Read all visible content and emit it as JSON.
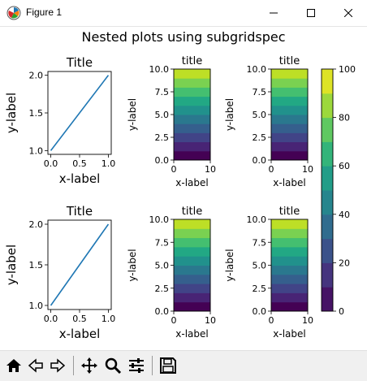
{
  "window": {
    "title": "Figure 1",
    "app_icon": "matplotlib-logo-icon",
    "buttons": [
      "minimize-icon",
      "maximize-icon",
      "close-icon"
    ]
  },
  "figure": {
    "suptitle": "Nested plots using subgridspec"
  },
  "colors": {
    "line": "#1f77b4",
    "viridis": [
      "#440154",
      "#482475",
      "#414487",
      "#355f8d",
      "#2a788e",
      "#21918c",
      "#22a884",
      "#44bf70",
      "#7ad151",
      "#bddf26",
      "#fde725"
    ]
  },
  "chart_data": [
    {
      "type": "line",
      "title": "Title",
      "xlabel": "x-label",
      "ylabel": "y-label",
      "x": [
        0,
        1
      ],
      "y": [
        1,
        2
      ],
      "xlim": [
        -0.05,
        1.05
      ],
      "ylim": [
        0.95,
        2.05
      ],
      "xticks": [
        "0.0",
        "0.5",
        "1.0"
      ],
      "yticks": [
        "1.0",
        "1.5",
        "2.0"
      ]
    },
    {
      "type": "heatmap",
      "title": "title",
      "xlabel": "x-label",
      "ylabel": "y-label",
      "xlim": [
        0,
        10
      ],
      "ylim": [
        0,
        10
      ],
      "xticks": [
        "0",
        "10"
      ],
      "yticks": [
        "0.0",
        "2.5",
        "5.0",
        "7.5",
        "10.0"
      ],
      "rows": 10,
      "cols": 2,
      "values": [
        [
          0,
          0
        ],
        [
          10,
          10
        ],
        [
          20,
          20
        ],
        [
          30,
          30
        ],
        [
          40,
          40
        ],
        [
          50,
          50
        ],
        [
          60,
          60
        ],
        [
          70,
          70
        ],
        [
          80,
          80
        ],
        [
          90,
          90
        ]
      ]
    },
    {
      "type": "heatmap",
      "title": "title",
      "xlabel": "x-label",
      "ylabel": "y-label",
      "xlim": [
        0,
        10
      ],
      "ylim": [
        0,
        10
      ],
      "xticks": [
        "0",
        "10"
      ],
      "yticks": [
        "0.0",
        "2.5",
        "5.0",
        "7.5",
        "10.0"
      ],
      "rows": 10,
      "cols": 2,
      "values": [
        [
          0,
          0
        ],
        [
          10,
          10
        ],
        [
          20,
          20
        ],
        [
          30,
          30
        ],
        [
          40,
          40
        ],
        [
          50,
          50
        ],
        [
          60,
          60
        ],
        [
          70,
          70
        ],
        [
          80,
          80
        ],
        [
          90,
          90
        ]
      ]
    },
    {
      "type": "line",
      "title": "Title",
      "xlabel": "x-label",
      "ylabel": "y-label",
      "x": [
        0,
        1
      ],
      "y": [
        1,
        2
      ],
      "xlim": [
        -0.05,
        1.05
      ],
      "ylim": [
        0.95,
        2.05
      ],
      "xticks": [
        "0.0",
        "0.5",
        "1.0"
      ],
      "yticks": [
        "1.0",
        "1.5",
        "2.0"
      ]
    },
    {
      "type": "heatmap",
      "title": "title",
      "xlabel": "x-label",
      "ylabel": "y-label",
      "xlim": [
        0,
        10
      ],
      "ylim": [
        0,
        10
      ],
      "xticks": [
        "0",
        "10"
      ],
      "yticks": [
        "0.0",
        "2.5",
        "5.0",
        "7.5",
        "10.0"
      ],
      "rows": 10,
      "cols": 2,
      "values": [
        [
          0,
          0
        ],
        [
          10,
          10
        ],
        [
          20,
          20
        ],
        [
          30,
          30
        ],
        [
          40,
          40
        ],
        [
          50,
          50
        ],
        [
          60,
          60
        ],
        [
          70,
          70
        ],
        [
          80,
          80
        ],
        [
          90,
          90
        ]
      ]
    },
    {
      "type": "heatmap",
      "title": "title",
      "xlabel": "x-label",
      "ylabel": "y-label",
      "xlim": [
        0,
        10
      ],
      "ylim": [
        0,
        10
      ],
      "xticks": [
        "0",
        "10"
      ],
      "yticks": [
        "0.0",
        "2.5",
        "5.0",
        "7.5",
        "10.0"
      ],
      "rows": 10,
      "cols": 2,
      "values": [
        [
          0,
          0
        ],
        [
          10,
          10
        ],
        [
          20,
          20
        ],
        [
          30,
          30
        ],
        [
          40,
          40
        ],
        [
          50,
          50
        ],
        [
          60,
          60
        ],
        [
          70,
          70
        ],
        [
          80,
          80
        ],
        [
          90,
          90
        ]
      ]
    },
    {
      "type": "colorbar",
      "range": [
        0,
        100
      ],
      "ticks": [
        "0",
        "20",
        "40",
        "60",
        "80",
        "100"
      ],
      "tick_values": [
        0,
        20,
        40,
        60,
        80,
        100
      ],
      "colormap": "viridis"
    }
  ],
  "toolbar": {
    "items": [
      "home-icon",
      "back-icon",
      "forward-icon",
      "pan-icon",
      "zoom-icon",
      "configure-subplots-icon",
      "save-icon"
    ]
  }
}
